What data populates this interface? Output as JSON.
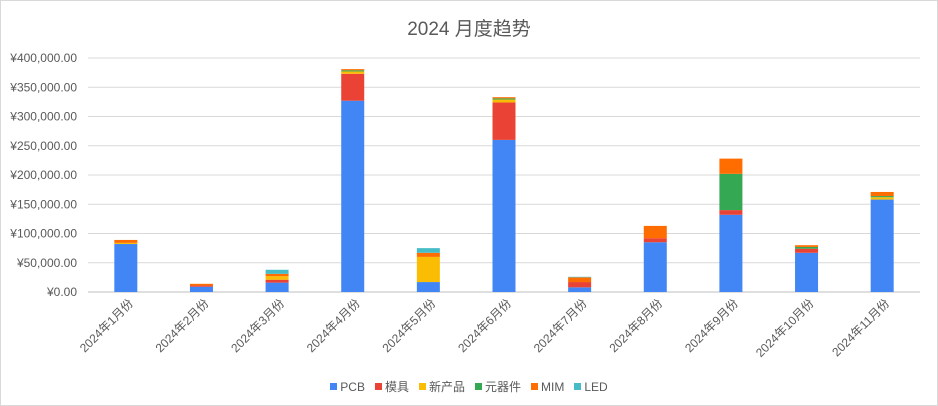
{
  "chart_data": {
    "type": "bar",
    "stacked": true,
    "title": "2024 月度趋势",
    "xlabel": "",
    "ylabel": "",
    "ylim": [
      0,
      400000
    ],
    "yticks": [
      0,
      50000,
      100000,
      150000,
      200000,
      250000,
      300000,
      350000,
      400000
    ],
    "ytick_labels": [
      "¥0.00",
      "¥50,000.00",
      "¥100,000.00",
      "¥150,000.00",
      "¥200,000.00",
      "¥250,000.00",
      "¥300,000.00",
      "¥350,000.00",
      "¥400,000.00"
    ],
    "grid": true,
    "legend_position": "bottom",
    "categories": [
      "2024年1月份",
      "2024年2月份",
      "2024年3月份",
      "2024年4月份",
      "2024年5月份",
      "2024年6月份",
      "2024年7月份",
      "2024年8月份",
      "2024年9月份",
      "2024年10月份",
      "2024年11月份"
    ],
    "series": [
      {
        "name": "PCB",
        "color": "#4285f4",
        "values": [
          82000,
          9000,
          16000,
          327000,
          17000,
          260000,
          8000,
          85000,
          132000,
          67000,
          158000
        ]
      },
      {
        "name": "模具",
        "color": "#ea4335",
        "values": [
          0,
          2000,
          5000,
          46000,
          0,
          64000,
          9000,
          7000,
          8000,
          7000,
          0
        ]
      },
      {
        "name": "新产品",
        "color": "#fbbc04",
        "values": [
          2000,
          0,
          6000,
          4000,
          43000,
          5000,
          0,
          0,
          0,
          0,
          4000
        ]
      },
      {
        "name": "元器件",
        "color": "#34a853",
        "values": [
          0,
          0,
          0,
          2000,
          0,
          2000,
          0,
          0,
          62000,
          3000,
          2000
        ]
      },
      {
        "name": "MIM",
        "color": "#ff6d01",
        "values": [
          5000,
          3000,
          4000,
          2000,
          7000,
          2000,
          8000,
          21000,
          26000,
          3000,
          7000
        ]
      },
      {
        "name": "LED",
        "color": "#46bdc6",
        "values": [
          0,
          0,
          7000,
          0,
          8000,
          0,
          1000,
          0,
          0,
          0,
          0
        ]
      }
    ]
  }
}
